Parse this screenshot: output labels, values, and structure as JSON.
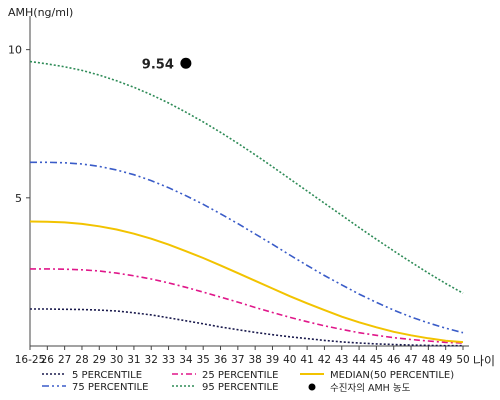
{
  "chart_data": {
    "type": "line",
    "ylabel": "AMH(ng/ml)",
    "xlabel": "나이",
    "ylim": [
      0,
      11
    ],
    "y_ticks": [
      5,
      10
    ],
    "x": [
      "16-25",
      "26",
      "27",
      "28",
      "29",
      "30",
      "31",
      "32",
      "33",
      "34",
      "35",
      "36",
      "37",
      "38",
      "39",
      "40",
      "41",
      "42",
      "43",
      "44",
      "45",
      "46",
      "47",
      "48",
      "49",
      "50"
    ],
    "series": [
      {
        "name": "5 PERCENTILE",
        "color": "#1a1a4d",
        "dash": "2,2",
        "values": [
          1.25,
          1.25,
          1.24,
          1.23,
          1.21,
          1.18,
          1.12,
          1.05,
          0.95,
          0.85,
          0.75,
          0.64,
          0.55,
          0.46,
          0.38,
          0.31,
          0.25,
          0.19,
          0.14,
          0.1,
          0.07,
          0.05,
          0.03,
          0.02,
          0.01,
          0.01
        ]
      },
      {
        "name": "25 PERCENTILE",
        "color": "#e0178a",
        "dash": "6,3,2,3",
        "values": [
          2.6,
          2.6,
          2.59,
          2.57,
          2.53,
          2.46,
          2.37,
          2.26,
          2.13,
          1.98,
          1.82,
          1.65,
          1.48,
          1.3,
          1.13,
          0.97,
          0.82,
          0.68,
          0.56,
          0.45,
          0.36,
          0.28,
          0.22,
          0.17,
          0.12,
          0.1
        ]
      },
      {
        "name": "MEDIAN(50 PERCENTILE)",
        "color": "#f2c300",
        "dash": "",
        "values": [
          4.2,
          4.19,
          4.17,
          4.12,
          4.04,
          3.93,
          3.79,
          3.62,
          3.42,
          3.2,
          2.97,
          2.72,
          2.46,
          2.2,
          1.94,
          1.68,
          1.44,
          1.21,
          0.99,
          0.8,
          0.63,
          0.48,
          0.36,
          0.26,
          0.18,
          0.13
        ]
      },
      {
        "name": "75 PERCENTILE",
        "color": "#3a5cc8",
        "dash": "7,3,2,3,2,3",
        "values": [
          6.2,
          6.2,
          6.18,
          6.14,
          6.06,
          5.94,
          5.78,
          5.58,
          5.34,
          5.07,
          4.78,
          4.46,
          4.13,
          3.78,
          3.43,
          3.07,
          2.72,
          2.38,
          2.06,
          1.75,
          1.47,
          1.21,
          0.98,
          0.78,
          0.6,
          0.45
        ]
      },
      {
        "name": "95 PERCENTILE",
        "color": "#2e8b57",
        "dash": "2,2",
        "values": [
          9.6,
          9.52,
          9.42,
          9.3,
          9.14,
          8.95,
          8.73,
          8.48,
          8.2,
          7.89,
          7.56,
          7.21,
          6.84,
          6.45,
          6.05,
          5.64,
          5.23,
          4.82,
          4.41,
          4.0,
          3.6,
          3.21,
          2.83,
          2.46,
          2.11,
          1.78
        ]
      }
    ],
    "point": {
      "name": "수진자의 AMH 농도",
      "x": "34",
      "y": 9.54,
      "label": "9.54",
      "color": "#000000"
    },
    "legend_position": "bottom",
    "grid": false
  }
}
